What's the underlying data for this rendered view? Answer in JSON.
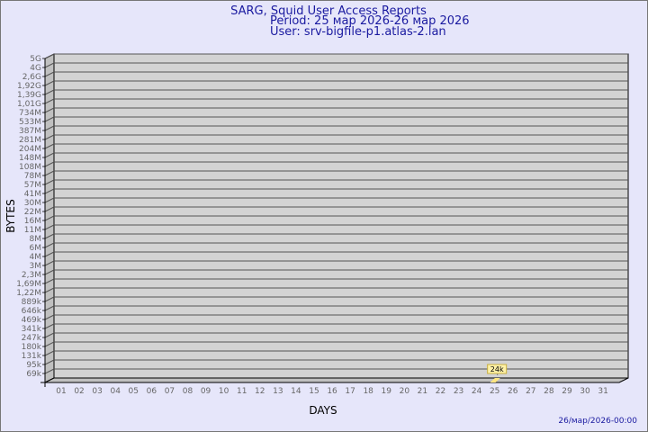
{
  "chart_data": {
    "type": "bar",
    "title": "SARG, Squid User Access Reports",
    "subtitle_period": "Period: 25 мар 2026-26 мар 2026",
    "subtitle_user": "User: srv-bigfile-p1.atlas-2.lan",
    "xlabel": "DAYS",
    "ylabel": "BYTES",
    "y_scale": "log",
    "y_tick_labels": [
      "5G",
      "4G",
      "2,6G",
      "1,92G",
      "1,39G",
      "1,01G",
      "734M",
      "533M",
      "387M",
      "281M",
      "204M",
      "148M",
      "108M",
      "78M",
      "57M",
      "41M",
      "30M",
      "22M",
      "16M",
      "11M",
      "8M",
      "6M",
      "4M",
      "3M",
      "2,3M",
      "1,69M",
      "1,22M",
      "889k",
      "646k",
      "469k",
      "341k",
      "247k",
      "180k",
      "131k",
      "95k",
      "69k"
    ],
    "categories": [
      "01",
      "02",
      "03",
      "04",
      "05",
      "06",
      "07",
      "08",
      "09",
      "10",
      "11",
      "12",
      "13",
      "14",
      "15",
      "16",
      "17",
      "18",
      "19",
      "20",
      "21",
      "22",
      "23",
      "24",
      "25",
      "26",
      "27",
      "28",
      "29",
      "30",
      "31"
    ],
    "bars": [
      {
        "category": "25",
        "value_label": "24k"
      }
    ],
    "grid": true,
    "footer": "26/мар/2026-00:00",
    "colors": {
      "background": "#e6e6fa",
      "wall": "#d3d3d3",
      "side": "#c0c0c0",
      "bar": "#ffe680",
      "title": "#1a1aa0"
    }
  }
}
